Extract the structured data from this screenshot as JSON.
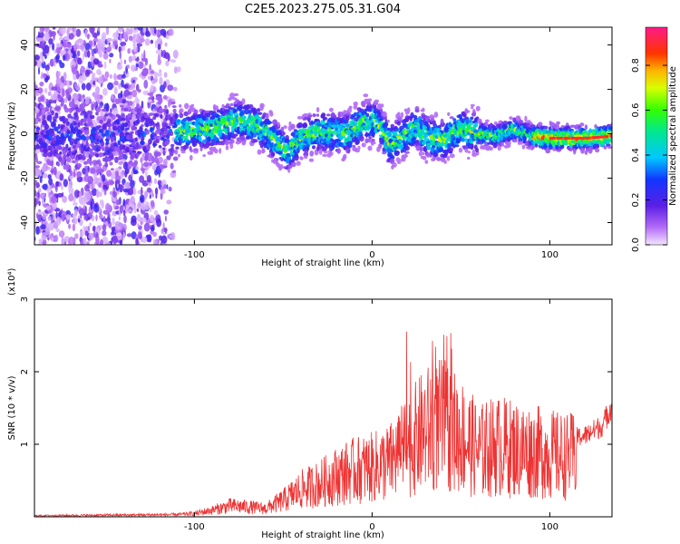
{
  "title": "C2E5.2023.275.05.31.G04",
  "chart_data": [
    {
      "type": "heatmap",
      "xlabel": "Height of straight line (km)",
      "ylabel": "Frequency (Hz)",
      "xlim": [
        -190,
        135
      ],
      "ylim": [
        -50,
        48
      ],
      "x_ticks": [
        -100,
        0,
        100
      ],
      "y_ticks": [
        -40,
        -20,
        0,
        20,
        40
      ],
      "colorbar": {
        "label": "Normalized spectral amplitude",
        "range": [
          0.0,
          0.97
        ],
        "ticks": [
          0.0,
          0.2,
          0.4,
          0.6,
          0.8
        ],
        "colormap": "white-violet-blue-cyan-green-yellow-red-magenta"
      },
      "centerline": [
        [
          -190,
          0
        ],
        [
          -150,
          -1
        ],
        [
          -110,
          1
        ],
        [
          -90,
          2
        ],
        [
          -75,
          6
        ],
        [
          -65,
          4
        ],
        [
          -55,
          -3
        ],
        [
          -48,
          -8
        ],
        [
          -40,
          -2
        ],
        [
          -30,
          1
        ],
        [
          -15,
          0
        ],
        [
          -5,
          5
        ],
        [
          0,
          6
        ],
        [
          5,
          3
        ],
        [
          10,
          -5
        ],
        [
          15,
          -2
        ],
        [
          20,
          0
        ],
        [
          25,
          3
        ],
        [
          30,
          -1
        ],
        [
          40,
          -3
        ],
        [
          50,
          2
        ],
        [
          60,
          0
        ],
        [
          70,
          -1
        ],
        [
          80,
          2
        ],
        [
          90,
          -1
        ],
        [
          100,
          -2
        ],
        [
          110,
          -2
        ],
        [
          120,
          -2
        ],
        [
          135,
          -1
        ]
      ]
    },
    {
      "type": "line",
      "xlabel": "Height of straight line (km)",
      "ylabel": "SNR (10 * v/v)",
      "multiplier": "(x10⁴)",
      "xlim": [
        -190,
        135
      ],
      "ylim": [
        0,
        3
      ],
      "x_ticks": [
        -100,
        0,
        100
      ],
      "y_ticks": [
        1,
        2,
        3
      ],
      "color": "#ee3333",
      "x": [
        -190,
        -150,
        -110,
        -100,
        -90,
        -80,
        -70,
        -60,
        -50,
        -40,
        -30,
        -20,
        -10,
        0,
        10,
        20,
        30,
        40,
        50,
        60,
        70,
        80,
        90,
        100,
        110,
        120,
        130,
        135
      ],
      "y": [
        0.02,
        0.03,
        0.04,
        0.06,
        0.12,
        0.2,
        0.18,
        0.15,
        0.3,
        0.5,
        0.6,
        0.75,
        0.85,
        0.9,
        1.0,
        1.3,
        1.6,
        1.7,
        1.5,
        1.2,
        1.3,
        1.25,
        1.2,
        1.15,
        1.1,
        1.15,
        1.3,
        1.6
      ]
    }
  ]
}
